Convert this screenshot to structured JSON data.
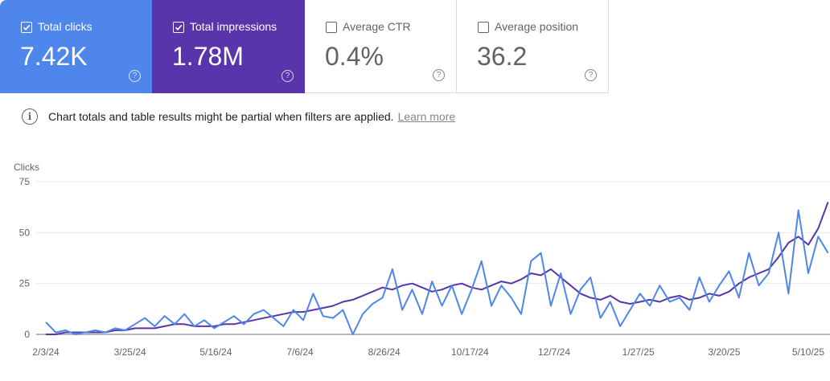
{
  "metrics": [
    {
      "label": "Total clicks",
      "value": "7.42K",
      "checked": true,
      "color": "#4f86ec"
    },
    {
      "label": "Total impressions",
      "value": "1.78M",
      "checked": true,
      "color": "#5935ab"
    },
    {
      "label": "Average CTR",
      "value": "0.4%",
      "checked": false
    },
    {
      "label": "Average position",
      "value": "36.2",
      "checked": false
    }
  ],
  "help_icon": "?",
  "notice": {
    "icon": "info-icon",
    "text": "Chart totals and table results might be partial when filters are applied.",
    "link": "Learn more"
  },
  "chart_data": {
    "type": "line",
    "ylabel": "Clicks",
    "ylim": [
      0,
      75
    ],
    "yticks": [
      "0",
      "25",
      "50",
      "75"
    ],
    "xticks": [
      "2/3/24",
      "3/25/24",
      "5/16/24",
      "7/6/24",
      "8/26/24",
      "10/17/24",
      "12/7/24",
      "1/27/25",
      "3/20/25",
      "5/10/25"
    ],
    "grid": true,
    "x": [
      "2024-02-03",
      "2024-02-09",
      "2024-02-15",
      "2024-02-21",
      "2024-02-27",
      "2024-03-04",
      "2024-03-10",
      "2024-03-16",
      "2024-03-22",
      "2024-03-28",
      "2024-04-03",
      "2024-04-09",
      "2024-04-15",
      "2024-04-21",
      "2024-04-27",
      "2024-05-03",
      "2024-05-09",
      "2024-05-15",
      "2024-05-21",
      "2024-05-27",
      "2024-06-02",
      "2024-06-08",
      "2024-06-14",
      "2024-06-20",
      "2024-06-26",
      "2024-07-02",
      "2024-07-08",
      "2024-07-14",
      "2024-07-20",
      "2024-07-26",
      "2024-08-01",
      "2024-08-07",
      "2024-08-13",
      "2024-08-19",
      "2024-08-25",
      "2024-08-31",
      "2024-09-06",
      "2024-09-12",
      "2024-09-18",
      "2024-09-24",
      "2024-09-30",
      "2024-10-06",
      "2024-10-12",
      "2024-10-18",
      "2024-10-24",
      "2024-10-30",
      "2024-11-05",
      "2024-11-11",
      "2024-11-17",
      "2024-11-23",
      "2024-11-29",
      "2024-12-05",
      "2024-12-11",
      "2024-12-17",
      "2024-12-23",
      "2024-12-29",
      "2025-01-04",
      "2025-01-10",
      "2025-01-16",
      "2025-01-22",
      "2025-01-28",
      "2025-02-03",
      "2025-02-09",
      "2025-02-15",
      "2025-02-21",
      "2025-02-27",
      "2025-03-05",
      "2025-03-11",
      "2025-03-17",
      "2025-03-23",
      "2025-03-29",
      "2025-04-04",
      "2025-04-10",
      "2025-04-16",
      "2025-04-22",
      "2025-04-28",
      "2025-05-04",
      "2025-05-10",
      "2025-05-16",
      "2025-05-22"
    ],
    "series": [
      {
        "metric": "impressions",
        "color": "#5935ab",
        "values": [
          0,
          0,
          1,
          1,
          1,
          1,
          1,
          2,
          2,
          3,
          3,
          3,
          4,
          5,
          5,
          4,
          4,
          4,
          5,
          5,
          6,
          7,
          8,
          9,
          10,
          11,
          11,
          12,
          13,
          14,
          16,
          17,
          19,
          21,
          23,
          22,
          24,
          25,
          23,
          21,
          22,
          24,
          25,
          23,
          22,
          24,
          26,
          25,
          27,
          30,
          29,
          32,
          28,
          24,
          20,
          18,
          17,
          19,
          16,
          15,
          16,
          17,
          16,
          18,
          19,
          17,
          18,
          20,
          19,
          21,
          25,
          28,
          30,
          32,
          38,
          45,
          48,
          44,
          52,
          65
        ]
      },
      {
        "metric": "clicks",
        "color": "#4f86ec",
        "values": [
          6,
          1,
          2,
          0,
          1,
          2,
          1,
          3,
          2,
          5,
          8,
          4,
          9,
          5,
          10,
          4,
          7,
          3,
          6,
          9,
          5,
          10,
          12,
          8,
          4,
          12,
          7,
          20,
          9,
          8,
          12,
          0,
          10,
          15,
          18,
          32,
          12,
          22,
          10,
          26,
          14,
          24,
          10,
          22,
          36,
          14,
          24,
          18,
          10,
          36,
          40,
          14,
          30,
          10,
          22,
          28,
          8,
          16,
          4,
          12,
          20,
          14,
          24,
          16,
          18,
          12,
          28,
          16,
          24,
          31,
          18,
          40,
          24,
          30,
          50,
          20,
          61,
          30,
          48,
          40
        ]
      }
    ]
  }
}
